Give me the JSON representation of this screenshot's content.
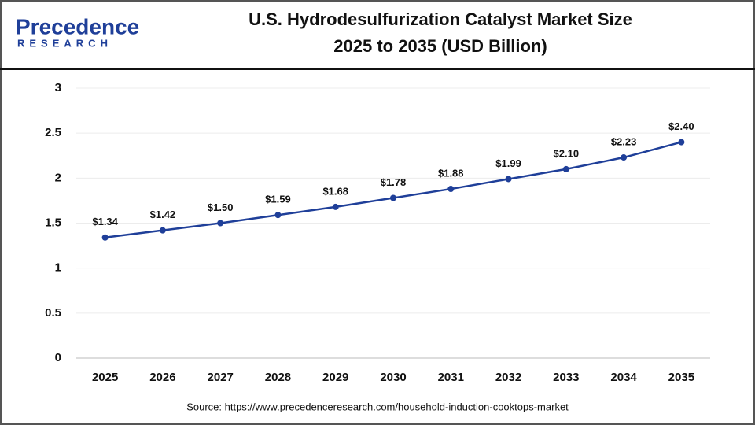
{
  "brand": {
    "name": "Precedence",
    "tagline": "RESEARCH"
  },
  "chart_data": {
    "type": "line",
    "title": [
      "U.S. Hydrodesulfurization Catalyst Market Size",
      "2025 to 2035 (USD Billion)"
    ],
    "categories": [
      "2025",
      "2026",
      "2027",
      "2028",
      "2029",
      "2030",
      "2031",
      "2032",
      "2033",
      "2034",
      "2035"
    ],
    "series": [
      {
        "name": "U.S. Hydrodesulfurization Catalyst Market Size",
        "color": "#1f3f99",
        "values": [
          1.34,
          1.42,
          1.5,
          1.59,
          1.68,
          1.78,
          1.88,
          1.99,
          2.1,
          2.23,
          2.4
        ],
        "value_labels": [
          "$1.34",
          "$1.42",
          "$1.50",
          "$1.59",
          "$1.68",
          "$1.78",
          "$1.88",
          "$1.99",
          "$2.10",
          "$2.23",
          "$2.40"
        ]
      }
    ],
    "ylim": [
      0,
      3
    ],
    "yticks": [
      0,
      0.5,
      1,
      1.5,
      2,
      2.5,
      3
    ],
    "grid": true,
    "source": "Source: https://www.precedenceresearch.com/household-induction-cooktops-market"
  }
}
